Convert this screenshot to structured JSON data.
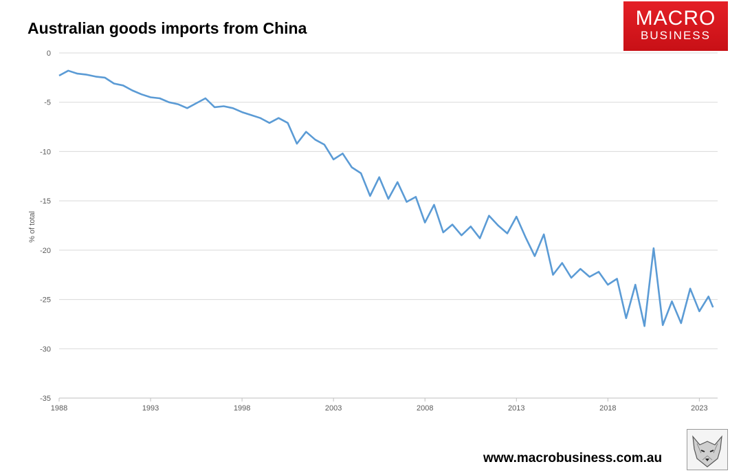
{
  "header": {
    "title": "Australian goods imports from China"
  },
  "logo": {
    "line1": "MACRO",
    "line2": "BUSINESS"
  },
  "footer": {
    "url": "www.macrobusiness.com.au"
  },
  "colors": {
    "series": "#5b9bd5",
    "grid": "#d9d9d9",
    "brand": "#e41f26"
  },
  "chart_data": {
    "type": "line",
    "title": "Australian goods imports from China",
    "ylabel": "% of total",
    "xlabel": "",
    "ylim": [
      -35,
      0
    ],
    "xlim": [
      1988,
      2024
    ],
    "yticks": [
      0,
      -5,
      -10,
      -15,
      -20,
      -25,
      -30,
      -35
    ],
    "xticks": [
      1988,
      1993,
      1998,
      2003,
      2008,
      2013,
      2018,
      2023
    ],
    "ytick_labels": [
      "0",
      "-5",
      "-10",
      "-15",
      "-20",
      "-25",
      "-30",
      "-35"
    ],
    "xtick_labels": [
      "1988",
      "1993",
      "1998",
      "2003",
      "2008",
      "2013",
      "2018",
      "2023"
    ],
    "grid": "horizontal",
    "series": [
      {
        "x": [
          1988.0,
          1988.5,
          1989.0,
          1989.5,
          1990.0,
          1990.5,
          1991.0,
          1991.5,
          1992.0,
          1992.5,
          1993.0,
          1993.5,
          1994.0,
          1994.5,
          1995.0,
          1995.5,
          1996.0,
          1996.5,
          1997.0,
          1997.5,
          1998.0,
          1998.5,
          1999.0,
          1999.5,
          2000.0,
          2000.5,
          2001.0,
          2001.5,
          2002.0,
          2002.5,
          2003.0,
          2003.5,
          2004.0,
          2004.5,
          2005.0,
          2005.5,
          2006.0,
          2006.5,
          2007.0,
          2007.5,
          2008.0,
          2008.5,
          2009.0,
          2009.5,
          2010.0,
          2010.5,
          2011.0,
          2011.5,
          2012.0,
          2012.5,
          2013.0,
          2013.5,
          2014.0,
          2014.5,
          2015.0,
          2015.5,
          2016.0,
          2016.5,
          2017.0,
          2017.5,
          2018.0,
          2018.5,
          2019.0,
          2019.5,
          2020.0,
          2020.5,
          2021.0,
          2021.5,
          2022.0,
          2022.5,
          2023.0,
          2023.5,
          2023.75
        ],
        "values": [
          -2.3,
          -1.8,
          -2.1,
          -2.2,
          -2.4,
          -2.5,
          -3.1,
          -3.3,
          -3.8,
          -4.2,
          -4.5,
          -4.6,
          -5.0,
          -5.2,
          -5.6,
          -5.1,
          -4.6,
          -5.5,
          -5.4,
          -5.6,
          -6.0,
          -6.3,
          -6.6,
          -7.1,
          -6.6,
          -7.1,
          -9.2,
          -8.0,
          -8.8,
          -9.3,
          -10.8,
          -10.2,
          -11.6,
          -12.2,
          -14.5,
          -12.6,
          -14.8,
          -13.1,
          -15.1,
          -14.6,
          -17.2,
          -15.4,
          -18.2,
          -17.4,
          -18.5,
          -17.6,
          -18.8,
          -16.5,
          -17.5,
          -18.3,
          -16.6,
          -18.7,
          -20.6,
          -18.4,
          -22.5,
          -21.3,
          -22.8,
          -21.9,
          -22.7,
          -22.2,
          -23.5,
          -22.9,
          -26.9,
          -23.5,
          -27.7,
          -19.8,
          -27.6,
          -25.2,
          -27.4,
          -23.9,
          -26.2,
          -24.7,
          -25.8
        ]
      }
    ]
  }
}
